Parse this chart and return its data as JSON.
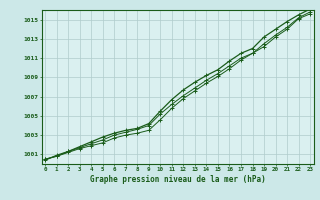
{
  "title": "Graphe pression niveau de la mer (hPa)",
  "fig_background": "#cce8e8",
  "plot_background": "#daf0f0",
  "grid_color": "#b0cccc",
  "line_color": "#1a5c1a",
  "x_hours": [
    0,
    1,
    2,
    3,
    4,
    5,
    6,
    7,
    8,
    9,
    10,
    11,
    12,
    13,
    14,
    15,
    16,
    17,
    18,
    19,
    20,
    21,
    22,
    23
  ],
  "line1": [
    1000.5,
    1000.8,
    1001.2,
    1001.6,
    1001.9,
    1002.2,
    1002.7,
    1003.0,
    1003.2,
    1003.5,
    1004.6,
    1005.8,
    1006.8,
    1007.6,
    1008.4,
    1009.1,
    1009.9,
    1010.8,
    1011.5,
    1012.2,
    1013.2,
    1014.0,
    1015.1,
    1015.6
  ],
  "line2": [
    1000.5,
    1000.8,
    1001.3,
    1001.7,
    1002.1,
    1002.5,
    1003.0,
    1003.3,
    1003.6,
    1004.0,
    1005.2,
    1006.2,
    1007.1,
    1007.9,
    1008.7,
    1009.4,
    1010.2,
    1011.0,
    1011.5,
    1012.5,
    1013.4,
    1014.2,
    1015.2,
    1015.8
  ],
  "line3": [
    1000.4,
    1000.9,
    1001.3,
    1001.8,
    1002.3,
    1002.8,
    1003.2,
    1003.5,
    1003.7,
    1004.2,
    1005.5,
    1006.7,
    1007.7,
    1008.5,
    1009.2,
    1009.8,
    1010.7,
    1011.5,
    1012.0,
    1013.2,
    1014.0,
    1014.8,
    1015.5,
    1016.1
  ],
  "ylim": [
    1000.0,
    1016.0
  ],
  "yticks": [
    1001,
    1003,
    1005,
    1007,
    1009,
    1011,
    1013,
    1015
  ],
  "xlim": [
    -0.3,
    23.3
  ],
  "xticks": [
    0,
    1,
    2,
    3,
    4,
    5,
    6,
    7,
    8,
    9,
    10,
    11,
    12,
    13,
    14,
    15,
    16,
    17,
    18,
    19,
    20,
    21,
    22,
    23
  ],
  "figsize": [
    3.2,
    2.0
  ],
  "dpi": 100
}
